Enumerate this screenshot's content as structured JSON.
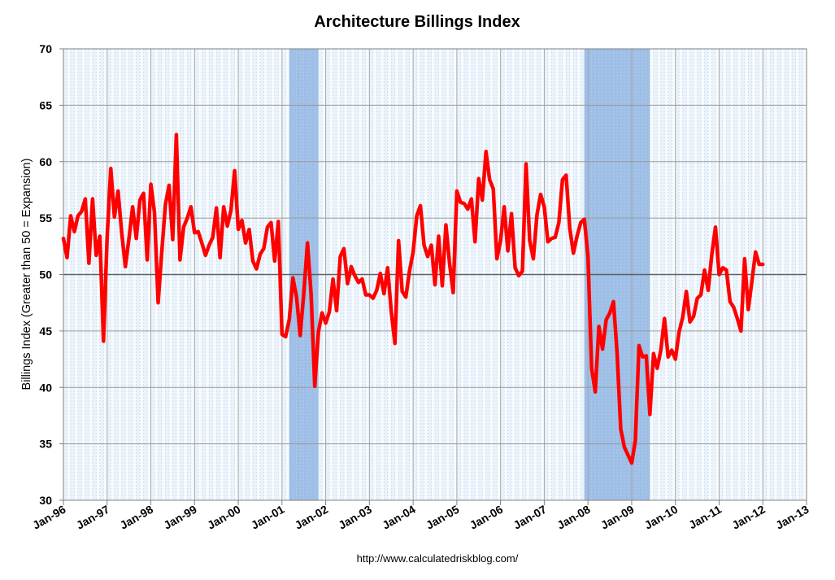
{
  "chart_data": {
    "type": "line",
    "title": "Architecture Billings Index",
    "xlabel": "",
    "ylabel": "Billings Index (Greater than 50 = Expansion)",
    "source": "http://www.calculatedriskblog.com/",
    "ylim": [
      30,
      70
    ],
    "y_ticks": [
      30,
      35,
      40,
      45,
      50,
      55,
      60,
      65,
      70
    ],
    "y_tick_labels": [
      "30",
      "35",
      "40",
      "45",
      "50",
      "55",
      "60",
      "65",
      "70"
    ],
    "x_range": [
      "Jan-96",
      "Jan-13"
    ],
    "x_tick_labels": [
      "Jan-96",
      "Jan-97",
      "Jan-98",
      "Jan-99",
      "Jan-00",
      "Jan-01",
      "Jan-02",
      "Jan-03",
      "Jan-04",
      "Jan-05",
      "Jan-06",
      "Jan-07",
      "Jan-08",
      "Jan-09",
      "Jan-10",
      "Jan-11",
      "Jan-12",
      "Jan-13"
    ],
    "reference_line": 50,
    "recessions": [
      {
        "start_month_index": 62,
        "end_month_index": 70
      },
      {
        "start_month_index": 143,
        "end_month_index": 161
      }
    ],
    "series": [
      {
        "name": "Architecture Billings Index",
        "color": "#ff0000",
        "start": "Jan-96",
        "frequency": "monthly",
        "values": [
          53.2,
          51.5,
          55.2,
          53.8,
          55.2,
          55.6,
          56.7,
          51.0,
          56.7,
          51.7,
          53.4,
          44.1,
          53.3,
          59.4,
          55.1,
          57.4,
          53.7,
          50.7,
          53.2,
          56.0,
          53.2,
          56.6,
          57.2,
          51.3,
          58.0,
          55.5,
          47.5,
          52.0,
          56.2,
          57.9,
          53.1,
          62.4,
          51.3,
          54.2,
          55.0,
          56.0,
          53.7,
          53.8,
          52.8,
          51.7,
          52.6,
          53.3,
          55.9,
          51.5,
          56.0,
          54.3,
          55.7,
          59.2,
          54.0,
          54.8,
          52.8,
          54.0,
          51.2,
          50.5,
          51.8,
          52.3,
          54.2,
          54.6,
          51.2,
          54.7,
          44.7,
          44.5,
          46.0,
          49.7,
          48.0,
          44.6,
          48.4,
          52.8,
          48.2,
          40.1,
          44.9,
          46.6,
          45.7,
          46.7,
          49.6,
          46.8,
          51.6,
          52.3,
          49.2,
          50.7,
          49.9,
          49.3,
          49.6,
          48.2,
          48.2,
          47.9,
          48.6,
          50.1,
          48.3,
          50.6,
          46.7,
          43.9,
          53.0,
          48.5,
          48.0,
          50.3,
          52.0,
          55.2,
          56.1,
          52.6,
          51.6,
          52.6,
          49.1,
          53.4,
          49.0,
          54.4,
          51.0,
          48.4,
          57.4,
          56.4,
          56.3,
          55.8,
          56.7,
          52.9,
          58.5,
          56.6,
          60.9,
          58.4,
          57.6,
          51.4,
          53.0,
          56.0,
          52.1,
          55.4,
          50.6,
          49.9,
          50.3,
          59.8,
          53.0,
          51.4,
          55.3,
          57.1,
          56.0,
          52.9,
          53.2,
          53.3,
          54.6,
          58.4,
          58.8,
          54.1,
          51.9,
          53.4,
          54.6,
          54.9,
          51.6,
          41.7,
          39.6,
          45.4,
          43.4,
          46.0,
          46.6,
          47.6,
          43.0,
          36.3,
          34.7,
          34.0,
          33.3,
          35.3,
          43.7,
          42.7,
          42.8,
          37.6,
          43.0,
          41.7,
          43.3,
          46.1,
          42.7,
          43.3,
          42.5,
          44.9,
          46.2,
          48.5,
          45.8,
          46.3,
          47.9,
          48.2,
          50.4,
          48.6,
          51.8,
          54.2,
          50.0,
          50.6,
          50.4,
          47.6,
          47.1,
          46.1,
          45.0,
          51.4,
          46.9,
          49.4,
          52.0,
          50.9,
          50.9
        ]
      }
    ]
  }
}
